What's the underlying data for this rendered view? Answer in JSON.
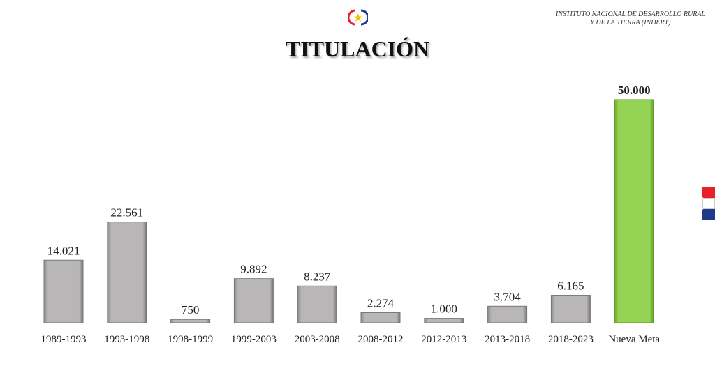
{
  "header": {
    "institution_line1": "INSTITUTO NACIONAL DE DESARROLLO RURAL",
    "institution_line2": "Y DE LA TIERRA (INDERT)"
  },
  "colors": {
    "bar": "#b5b3b3",
    "highlight": "#92d050",
    "flag_red": "#e8202a",
    "flag_white": "#ffffff",
    "flag_blue": "#1f3a8a"
  },
  "chart_data": {
    "type": "bar",
    "title": "TITULACIÓN",
    "categories": [
      "1989-1993",
      "1993-1998",
      "1998-1999",
      "1999-2003",
      "2003-2008",
      "2008-2012",
      "2012-2013",
      "2013-2018",
      "2018-2023",
      "Nueva Meta"
    ],
    "values": [
      14021,
      22561,
      750,
      9892,
      8237,
      2274,
      1000,
      3704,
      6165,
      50000
    ],
    "labels": [
      "14.021",
      "22.561",
      "750",
      "9.892",
      "8.237",
      "2.274",
      "1.000",
      "3.704",
      "6.165",
      "50.000"
    ],
    "highlight_index": 9,
    "xlabel": "",
    "ylabel": "",
    "ylim": [
      0,
      50000
    ],
    "grid": false
  }
}
